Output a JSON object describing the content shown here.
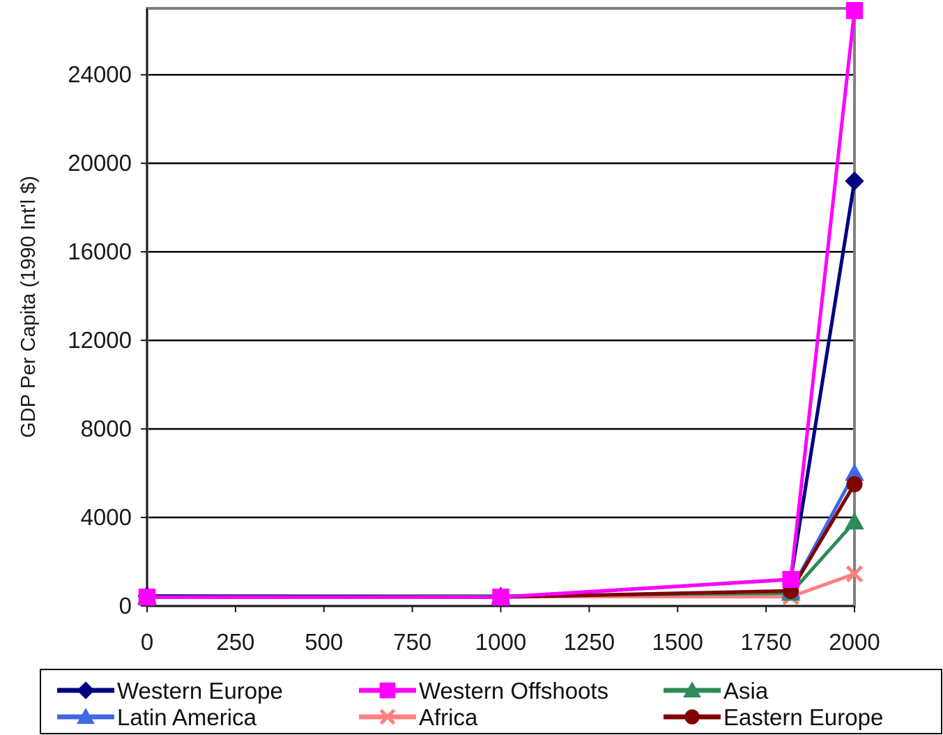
{
  "chart_data": {
    "type": "line",
    "title": "",
    "xlabel": "",
    "ylabel": "GDP Per Capita (1990 Int'l $)",
    "xlim": [
      0,
      2000
    ],
    "ylim": [
      0,
      27000
    ],
    "x_ticks": [
      0,
      250,
      500,
      750,
      1000,
      1250,
      1500,
      1750,
      2000
    ],
    "y_ticks": [
      0,
      4000,
      8000,
      12000,
      16000,
      20000,
      24000
    ],
    "grid": "horizontal",
    "legend_position": "bottom",
    "x": [
      0,
      1000,
      1820,
      2000
    ],
    "series": [
      {
        "name": "Western Europe",
        "color": "#000080",
        "marker": "diamond",
        "values": [
          450,
          400,
          1200,
          19200
        ]
      },
      {
        "name": "Western Offshoots",
        "color": "#ff00ff",
        "marker": "square",
        "values": [
          400,
          400,
          1200,
          26900
        ]
      },
      {
        "name": "Asia",
        "color": "#2e8b57",
        "marker": "triangle",
        "values": [
          450,
          450,
          580,
          3800
        ]
      },
      {
        "name": "Latin America",
        "color": "#4169e1",
        "marker": "triangle",
        "values": [
          400,
          400,
          690,
          6000
        ]
      },
      {
        "name": "Africa",
        "color": "#ff8080",
        "marker": "x",
        "values": [
          430,
          430,
          420,
          1450
        ]
      },
      {
        "name": "Eastern Europe",
        "color": "#800000",
        "marker": "circle",
        "values": [
          400,
          400,
          680,
          5500
        ]
      }
    ]
  }
}
